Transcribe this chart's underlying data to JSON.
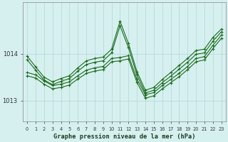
{
  "title": "Graphe pression niveau de la mer (hPa)",
  "bg_color": "#d6f0f0",
  "grid_color": "#b8dada",
  "line_color": "#1a6b1a",
  "ylabel_ticks": [
    1013,
    1014
  ],
  "xlim": [
    -0.5,
    23.5
  ],
  "ylim": [
    1012.55,
    1015.1
  ],
  "x": [
    0,
    1,
    2,
    3,
    4,
    5,
    6,
    7,
    8,
    9,
    10,
    11,
    12,
    13,
    14,
    15,
    16,
    17,
    18,
    19,
    20,
    21,
    22,
    23
  ],
  "series": [
    [
      1013.95,
      1013.72,
      1013.5,
      1013.4,
      1013.47,
      1013.53,
      1013.7,
      1013.82,
      1013.87,
      1013.9,
      1014.08,
      1014.68,
      1014.2,
      1013.6,
      1013.22,
      1013.28,
      1013.45,
      1013.58,
      1013.72,
      1013.88,
      1014.05,
      1014.08,
      1014.32,
      1014.52
    ],
    [
      1013.88,
      1013.68,
      1013.47,
      1013.37,
      1013.44,
      1013.5,
      1013.66,
      1013.78,
      1013.83,
      1013.86,
      1014.03,
      1014.6,
      1014.12,
      1013.53,
      1013.18,
      1013.23,
      1013.4,
      1013.53,
      1013.67,
      1013.82,
      1013.99,
      1014.02,
      1014.26,
      1014.48
    ],
    [
      1013.6,
      1013.55,
      1013.42,
      1013.32,
      1013.38,
      1013.44,
      1013.59,
      1013.71,
      1013.76,
      1013.79,
      1013.96,
      1013.96,
      1013.96,
      1013.47,
      1013.14,
      1013.18,
      1013.34,
      1013.47,
      1013.6,
      1013.75,
      1013.92,
      1013.96,
      1014.2,
      1014.42
    ],
    [
      1013.55,
      1013.5,
      1013.37,
      1013.27,
      1013.33,
      1013.39,
      1013.54,
      1013.66,
      1013.71,
      1013.74,
      1013.91,
      1013.91,
      1013.91,
      1013.42,
      1013.09,
      1013.13,
      1013.29,
      1013.42,
      1013.55,
      1013.7,
      1013.87,
      1013.9,
      1014.15,
      1014.37
    ]
  ]
}
